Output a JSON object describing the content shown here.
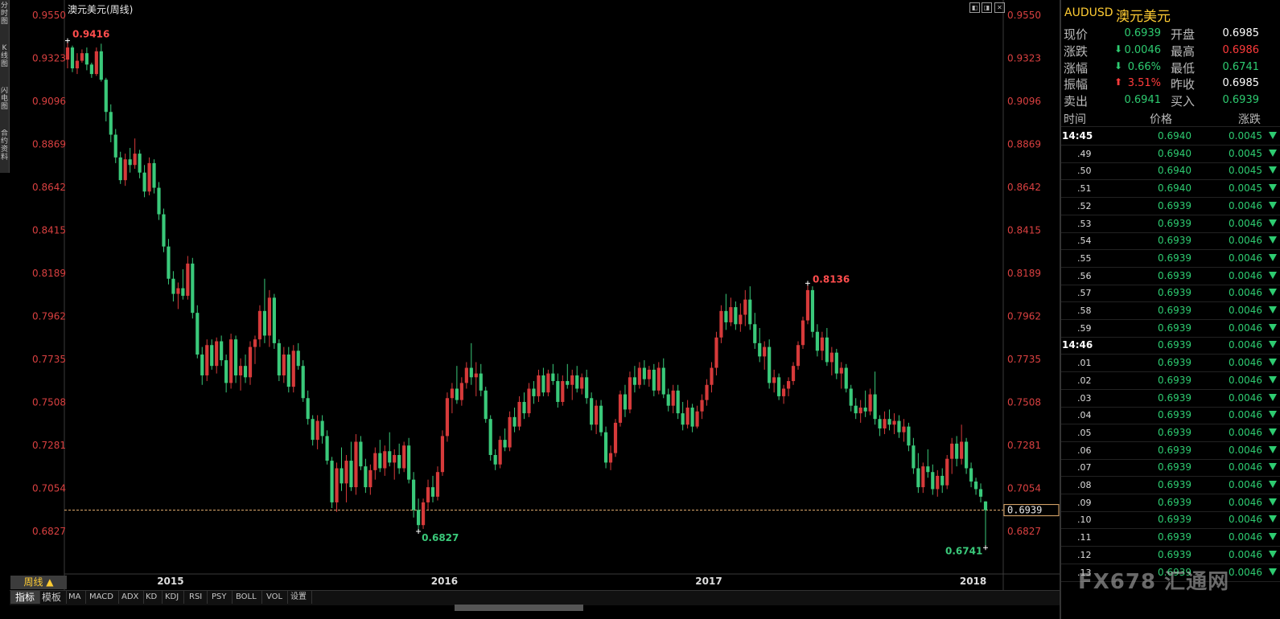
{
  "window": {
    "title": "澳元美元(周线)",
    "side_tabs": [
      "分时图",
      "K线图",
      "闪电图",
      "合约资料"
    ]
  },
  "chart_data": {
    "type": "candlestick",
    "y_ticks": [
      "0.9550",
      "0.9323",
      "0.9096",
      "0.8869",
      "0.8642",
      "0.8415",
      "0.8189",
      "0.7962",
      "0.7735",
      "0.7508",
      "0.7281",
      "0.7054",
      "0.6827"
    ],
    "x_ticks": [
      "2015",
      "2016",
      "2017",
      "2018"
    ],
    "ylim": [
      0.6827,
      0.955
    ],
    "annotations": [
      "0.9416",
      "0.6827",
      "0.8136",
      "0.6741"
    ],
    "current_price_label": "0.6939",
    "current_price": 0.6939,
    "colors": {
      "up": "#d63a3a",
      "down": "#3ac97a",
      "ref_line": "#e8b070"
    },
    "ohlc": [
      [
        0.9316,
        0.9416,
        0.927,
        0.938
      ],
      [
        0.938,
        0.939,
        0.925,
        0.927
      ],
      [
        0.927,
        0.935,
        0.924,
        0.931
      ],
      [
        0.931,
        0.937,
        0.93,
        0.935
      ],
      [
        0.935,
        0.938,
        0.926,
        0.929
      ],
      [
        0.929,
        0.93,
        0.922,
        0.924
      ],
      [
        0.924,
        0.938,
        0.923,
        0.936
      ],
      [
        0.936,
        0.94,
        0.92,
        0.921
      ],
      [
        0.921,
        0.922,
        0.899,
        0.904
      ],
      [
        0.904,
        0.908,
        0.888,
        0.892
      ],
      [
        0.892,
        0.895,
        0.877,
        0.88
      ],
      [
        0.88,
        0.883,
        0.866,
        0.868
      ],
      [
        0.868,
        0.882,
        0.865,
        0.879
      ],
      [
        0.879,
        0.885,
        0.872,
        0.876
      ],
      [
        0.876,
        0.89,
        0.874,
        0.882
      ],
      [
        0.882,
        0.884,
        0.869,
        0.872
      ],
      [
        0.872,
        0.876,
        0.859,
        0.862
      ],
      [
        0.862,
        0.88,
        0.86,
        0.877
      ],
      [
        0.877,
        0.879,
        0.861,
        0.864
      ],
      [
        0.864,
        0.867,
        0.847,
        0.85
      ],
      [
        0.85,
        0.853,
        0.83,
        0.833
      ],
      [
        0.833,
        0.837,
        0.813,
        0.816
      ],
      [
        0.816,
        0.82,
        0.804,
        0.808
      ],
      [
        0.808,
        0.814,
        0.8,
        0.811
      ],
      [
        0.811,
        0.821,
        0.805,
        0.807
      ],
      [
        0.807,
        0.828,
        0.805,
        0.824
      ],
      [
        0.824,
        0.827,
        0.795,
        0.798
      ],
      [
        0.798,
        0.802,
        0.774,
        0.776
      ],
      [
        0.776,
        0.78,
        0.76,
        0.765
      ],
      [
        0.765,
        0.784,
        0.762,
        0.781
      ],
      [
        0.781,
        0.784,
        0.768,
        0.77
      ],
      [
        0.77,
        0.785,
        0.766,
        0.783
      ],
      [
        0.783,
        0.786,
        0.77,
        0.773
      ],
      [
        0.773,
        0.776,
        0.756,
        0.761
      ],
      [
        0.761,
        0.787,
        0.758,
        0.784
      ],
      [
        0.784,
        0.786,
        0.761,
        0.765
      ],
      [
        0.765,
        0.774,
        0.757,
        0.77
      ],
      [
        0.77,
        0.776,
        0.761,
        0.764
      ],
      [
        0.764,
        0.783,
        0.76,
        0.78
      ],
      [
        0.78,
        0.786,
        0.771,
        0.784
      ],
      [
        0.784,
        0.802,
        0.78,
        0.799
      ],
      [
        0.799,
        0.816,
        0.782,
        0.786
      ],
      [
        0.786,
        0.81,
        0.78,
        0.806
      ],
      [
        0.806,
        0.808,
        0.779,
        0.782
      ],
      [
        0.782,
        0.784,
        0.762,
        0.765
      ],
      [
        0.765,
        0.78,
        0.761,
        0.776
      ],
      [
        0.776,
        0.78,
        0.756,
        0.759
      ],
      [
        0.759,
        0.781,
        0.756,
        0.778
      ],
      [
        0.778,
        0.782,
        0.768,
        0.77
      ],
      [
        0.77,
        0.773,
        0.751,
        0.753
      ],
      [
        0.753,
        0.757,
        0.739,
        0.742
      ],
      [
        0.742,
        0.744,
        0.728,
        0.731
      ],
      [
        0.731,
        0.744,
        0.726,
        0.741
      ],
      [
        0.741,
        0.744,
        0.729,
        0.733
      ],
      [
        0.733,
        0.736,
        0.718,
        0.72
      ],
      [
        0.72,
        0.722,
        0.695,
        0.698
      ],
      [
        0.698,
        0.719,
        0.693,
        0.716
      ],
      [
        0.716,
        0.727,
        0.704,
        0.708
      ],
      [
        0.708,
        0.723,
        0.698,
        0.72
      ],
      [
        0.72,
        0.73,
        0.704,
        0.706
      ],
      [
        0.706,
        0.734,
        0.702,
        0.73
      ],
      [
        0.73,
        0.733,
        0.715,
        0.717
      ],
      [
        0.717,
        0.721,
        0.703,
        0.706
      ],
      [
        0.706,
        0.718,
        0.702,
        0.715
      ],
      [
        0.715,
        0.727,
        0.71,
        0.724
      ],
      [
        0.724,
        0.731,
        0.714,
        0.716
      ],
      [
        0.716,
        0.728,
        0.712,
        0.725
      ],
      [
        0.725,
        0.735,
        0.717,
        0.719
      ],
      [
        0.719,
        0.726,
        0.71,
        0.723
      ],
      [
        0.723,
        0.729,
        0.713,
        0.716
      ],
      [
        0.716,
        0.73,
        0.714,
        0.728
      ],
      [
        0.728,
        0.732,
        0.708,
        0.71
      ],
      [
        0.71,
        0.714,
        0.69,
        0.694
      ],
      [
        0.694,
        0.7,
        0.6827,
        0.686
      ],
      [
        0.686,
        0.7,
        0.684,
        0.698
      ],
      [
        0.698,
        0.71,
        0.694,
        0.706
      ],
      [
        0.706,
        0.712,
        0.698,
        0.701
      ],
      [
        0.701,
        0.717,
        0.699,
        0.714
      ],
      [
        0.714,
        0.736,
        0.712,
        0.733
      ],
      [
        0.733,
        0.756,
        0.73,
        0.753
      ],
      [
        0.753,
        0.761,
        0.745,
        0.758
      ],
      [
        0.758,
        0.77,
        0.75,
        0.752
      ],
      [
        0.752,
        0.764,
        0.749,
        0.761
      ],
      [
        0.761,
        0.772,
        0.758,
        0.769
      ],
      [
        0.769,
        0.782,
        0.76,
        0.764
      ],
      [
        0.764,
        0.772,
        0.754,
        0.766
      ],
      [
        0.766,
        0.771,
        0.754,
        0.757
      ],
      [
        0.757,
        0.759,
        0.74,
        0.742
      ],
      [
        0.742,
        0.744,
        0.72,
        0.723
      ],
      [
        0.723,
        0.726,
        0.715,
        0.718
      ],
      [
        0.718,
        0.733,
        0.716,
        0.731
      ],
      [
        0.731,
        0.737,
        0.725,
        0.727
      ],
      [
        0.727,
        0.746,
        0.725,
        0.743
      ],
      [
        0.743,
        0.748,
        0.735,
        0.738
      ],
      [
        0.738,
        0.754,
        0.736,
        0.751
      ],
      [
        0.751,
        0.756,
        0.742,
        0.745
      ],
      [
        0.745,
        0.761,
        0.743,
        0.758
      ],
      [
        0.758,
        0.762,
        0.75,
        0.754
      ],
      [
        0.754,
        0.768,
        0.751,
        0.765
      ],
      [
        0.765,
        0.769,
        0.754,
        0.756
      ],
      [
        0.756,
        0.768,
        0.754,
        0.766
      ],
      [
        0.766,
        0.771,
        0.76,
        0.762
      ],
      [
        0.762,
        0.766,
        0.748,
        0.751
      ],
      [
        0.751,
        0.765,
        0.749,
        0.762
      ],
      [
        0.762,
        0.771,
        0.758,
        0.76
      ],
      [
        0.76,
        0.768,
        0.752,
        0.765
      ],
      [
        0.765,
        0.77,
        0.756,
        0.758
      ],
      [
        0.758,
        0.766,
        0.755,
        0.764
      ],
      [
        0.764,
        0.768,
        0.75,
        0.753
      ],
      [
        0.753,
        0.756,
        0.736,
        0.739
      ],
      [
        0.739,
        0.752,
        0.734,
        0.749
      ],
      [
        0.749,
        0.752,
        0.733,
        0.735
      ],
      [
        0.735,
        0.738,
        0.716,
        0.719
      ],
      [
        0.719,
        0.728,
        0.715,
        0.724
      ],
      [
        0.724,
        0.742,
        0.722,
        0.74
      ],
      [
        0.74,
        0.757,
        0.738,
        0.755
      ],
      [
        0.755,
        0.76,
        0.743,
        0.747
      ],
      [
        0.747,
        0.767,
        0.745,
        0.764
      ],
      [
        0.764,
        0.77,
        0.756,
        0.76
      ],
      [
        0.76,
        0.772,
        0.758,
        0.769
      ],
      [
        0.769,
        0.773,
        0.76,
        0.763
      ],
      [
        0.763,
        0.77,
        0.759,
        0.768
      ],
      [
        0.768,
        0.771,
        0.754,
        0.757
      ],
      [
        0.757,
        0.772,
        0.755,
        0.769
      ],
      [
        0.769,
        0.774,
        0.753,
        0.755
      ],
      [
        0.755,
        0.758,
        0.746,
        0.749
      ],
      [
        0.749,
        0.76,
        0.745,
        0.757
      ],
      [
        0.757,
        0.76,
        0.742,
        0.745
      ],
      [
        0.745,
        0.751,
        0.736,
        0.739
      ],
      [
        0.739,
        0.752,
        0.737,
        0.748
      ],
      [
        0.748,
        0.75,
        0.735,
        0.738
      ],
      [
        0.738,
        0.749,
        0.737,
        0.746
      ],
      [
        0.746,
        0.755,
        0.742,
        0.752
      ],
      [
        0.752,
        0.763,
        0.749,
        0.76
      ],
      [
        0.76,
        0.772,
        0.756,
        0.769
      ],
      [
        0.769,
        0.788,
        0.765,
        0.785
      ],
      [
        0.785,
        0.802,
        0.782,
        0.799
      ],
      [
        0.799,
        0.808,
        0.789,
        0.793
      ],
      [
        0.793,
        0.806,
        0.791,
        0.801
      ],
      [
        0.801,
        0.804,
        0.789,
        0.792
      ],
      [
        0.792,
        0.803,
        0.788,
        0.797
      ],
      [
        0.797,
        0.81,
        0.791,
        0.805
      ],
      [
        0.805,
        0.812,
        0.789,
        0.792
      ],
      [
        0.792,
        0.798,
        0.779,
        0.782
      ],
      [
        0.782,
        0.79,
        0.772,
        0.775
      ],
      [
        0.775,
        0.783,
        0.768,
        0.78
      ],
      [
        0.78,
        0.784,
        0.758,
        0.761
      ],
      [
        0.761,
        0.768,
        0.756,
        0.764
      ],
      [
        0.764,
        0.766,
        0.752,
        0.754
      ],
      [
        0.754,
        0.76,
        0.75,
        0.758
      ],
      [
        0.758,
        0.764,
        0.754,
        0.762
      ],
      [
        0.762,
        0.772,
        0.76,
        0.77
      ],
      [
        0.77,
        0.783,
        0.768,
        0.781
      ],
      [
        0.781,
        0.796,
        0.779,
        0.794
      ],
      [
        0.794,
        0.8136,
        0.792,
        0.81
      ],
      [
        0.81,
        0.812,
        0.785,
        0.788
      ],
      [
        0.788,
        0.792,
        0.775,
        0.778
      ],
      [
        0.778,
        0.788,
        0.773,
        0.785
      ],
      [
        0.785,
        0.79,
        0.77,
        0.772
      ],
      [
        0.772,
        0.78,
        0.765,
        0.777
      ],
      [
        0.777,
        0.779,
        0.763,
        0.766
      ],
      [
        0.766,
        0.772,
        0.758,
        0.769
      ],
      [
        0.769,
        0.771,
        0.756,
        0.758
      ],
      [
        0.758,
        0.76,
        0.746,
        0.749
      ],
      [
        0.749,
        0.753,
        0.742,
        0.745
      ],
      [
        0.745,
        0.752,
        0.74,
        0.748
      ],
      [
        0.748,
        0.757,
        0.743,
        0.746
      ],
      [
        0.746,
        0.758,
        0.744,
        0.755
      ],
      [
        0.755,
        0.767,
        0.739,
        0.742
      ],
      [
        0.742,
        0.744,
        0.733,
        0.737
      ],
      [
        0.737,
        0.746,
        0.734,
        0.742
      ],
      [
        0.742,
        0.747,
        0.736,
        0.739
      ],
      [
        0.739,
        0.745,
        0.734,
        0.741
      ],
      [
        0.741,
        0.744,
        0.732,
        0.735
      ],
      [
        0.735,
        0.742,
        0.73,
        0.738
      ],
      [
        0.738,
        0.74,
        0.725,
        0.728
      ],
      [
        0.728,
        0.732,
        0.713,
        0.716
      ],
      [
        0.716,
        0.724,
        0.703,
        0.706
      ],
      [
        0.706,
        0.719,
        0.703,
        0.717
      ],
      [
        0.717,
        0.726,
        0.711,
        0.714
      ],
      [
        0.714,
        0.718,
        0.702,
        0.705
      ],
      [
        0.705,
        0.715,
        0.701,
        0.712
      ],
      [
        0.712,
        0.716,
        0.703,
        0.707
      ],
      [
        0.707,
        0.723,
        0.705,
        0.721
      ],
      [
        0.721,
        0.732,
        0.713,
        0.729
      ],
      [
        0.729,
        0.733,
        0.717,
        0.721
      ],
      [
        0.721,
        0.739,
        0.718,
        0.73
      ],
      [
        0.73,
        0.732,
        0.713,
        0.716
      ],
      [
        0.716,
        0.719,
        0.706,
        0.709
      ],
      [
        0.709,
        0.711,
        0.702,
        0.705
      ],
      [
        0.705,
        0.708,
        0.698,
        0.701
      ],
      [
        0.6985,
        0.6986,
        0.6741,
        0.6939
      ]
    ]
  },
  "quote": {
    "symbol": "AUDUSD",
    "name": "澳元美元",
    "fields": [
      {
        "label": "现价",
        "value": "0.6939",
        "label2": "开盘",
        "value2": "0.6985"
      },
      {
        "label": "涨跌",
        "value": "0.0046",
        "label2": "最高",
        "value2": "0.6986"
      },
      {
        "label": "涨幅",
        "value": "0.66%",
        "label2": "最低",
        "value2": "0.6741"
      },
      {
        "label": "振幅",
        "value": "3.51%",
        "label2": "昨收",
        "value2": "0.6985"
      },
      {
        "label": "卖出",
        "value": "0.6941",
        "label2": "买入",
        "value2": "0.6939"
      }
    ]
  },
  "ticks": {
    "headers": [
      "时间",
      "价格",
      "涨跌"
    ],
    "rows": [
      {
        "t": "14:45",
        "p": "0.6940",
        "c": "0.0045"
      },
      {
        "t": ".49",
        "p": "0.6940",
        "c": "0.0045"
      },
      {
        "t": ".50",
        "p": "0.6940",
        "c": "0.0045"
      },
      {
        "t": ".51",
        "p": "0.6940",
        "c": "0.0045"
      },
      {
        "t": ".52",
        "p": "0.6939",
        "c": "0.0046"
      },
      {
        "t": ".53",
        "p": "0.6939",
        "c": "0.0046"
      },
      {
        "t": ".54",
        "p": "0.6939",
        "c": "0.0046"
      },
      {
        "t": ".55",
        "p": "0.6939",
        "c": "0.0046"
      },
      {
        "t": ".56",
        "p": "0.6939",
        "c": "0.0046"
      },
      {
        "t": ".57",
        "p": "0.6939",
        "c": "0.0046"
      },
      {
        "t": ".58",
        "p": "0.6939",
        "c": "0.0046"
      },
      {
        "t": ".59",
        "p": "0.6939",
        "c": "0.0046"
      },
      {
        "t": "14:46",
        "p": "0.6939",
        "c": "0.0046"
      },
      {
        "t": ".01",
        "p": "0.6939",
        "c": "0.0046"
      },
      {
        "t": ".02",
        "p": "0.6939",
        "c": "0.0046"
      },
      {
        "t": ".03",
        "p": "0.6939",
        "c": "0.0046"
      },
      {
        "t": ".04",
        "p": "0.6939",
        "c": "0.0046"
      },
      {
        "t": ".05",
        "p": "0.6939",
        "c": "0.0046"
      },
      {
        "t": ".06",
        "p": "0.6939",
        "c": "0.0046"
      },
      {
        "t": ".07",
        "p": "0.6939",
        "c": "0.0046"
      },
      {
        "t": ".08",
        "p": "0.6939",
        "c": "0.0046"
      },
      {
        "t": ".09",
        "p": "0.6939",
        "c": "0.0046"
      },
      {
        "t": ".10",
        "p": "0.6939",
        "c": "0.0046"
      },
      {
        "t": ".11",
        "p": "0.6939",
        "c": "0.0046"
      },
      {
        "t": ".12",
        "p": "0.6939",
        "c": "0.0046"
      },
      {
        "t": ".13",
        "p": "0.6939",
        "c": "0.0046"
      }
    ]
  },
  "bottom": {
    "period": "周线 ▲",
    "tabs": [
      "指标",
      "模板",
      "MA",
      "MACD",
      "ADX",
      "KD",
      "KDJ",
      "RSI",
      "PSY",
      "BOLL",
      "VOL",
      "设置"
    ]
  },
  "watermark": "FX678 汇通网"
}
